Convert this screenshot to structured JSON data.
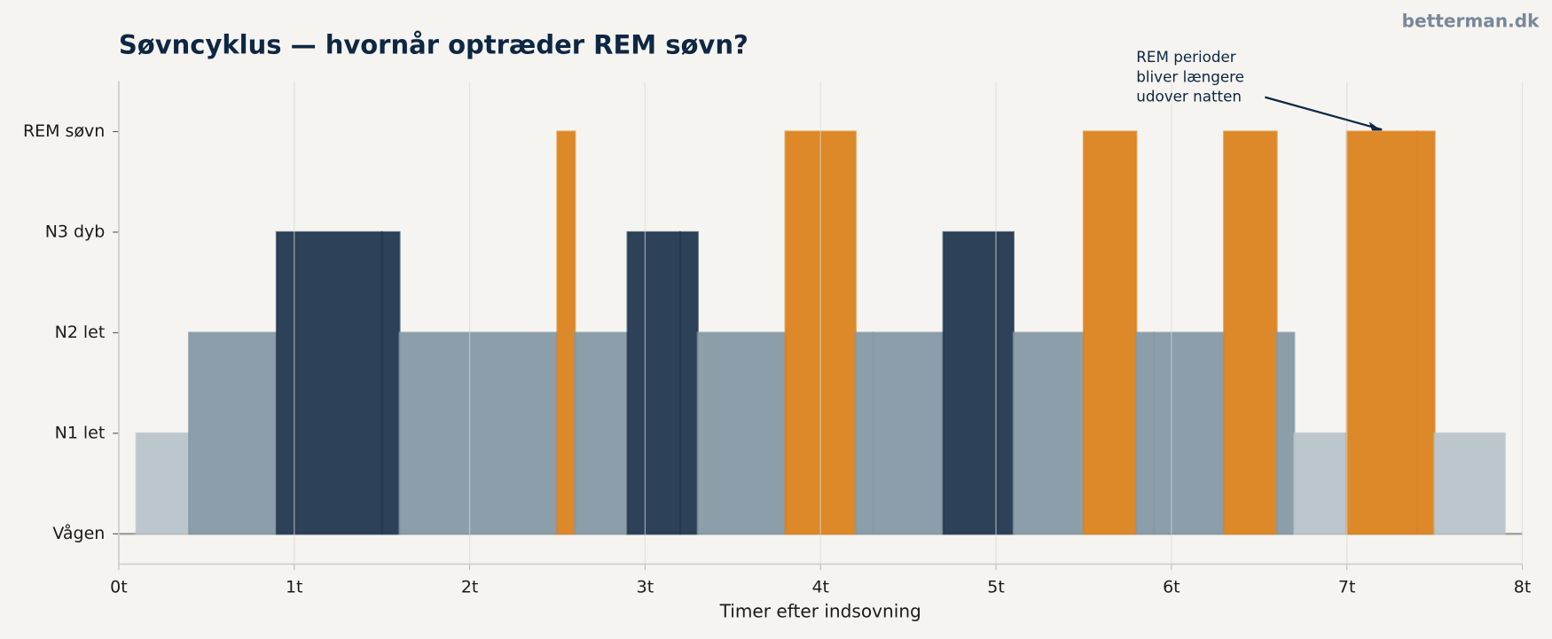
{
  "watermark": "betterman.dk",
  "chart_data": {
    "type": "hypnogram",
    "title": "Søvncyklus — hvornår optræder REM søvn?",
    "xlabel": "Timer efter indsovning",
    "xlim": [
      0,
      8
    ],
    "xticks": [
      {
        "value": 0,
        "label": "0t"
      },
      {
        "value": 1,
        "label": "1t"
      },
      {
        "value": 2,
        "label": "2t"
      },
      {
        "value": 3,
        "label": "3t"
      },
      {
        "value": 4,
        "label": "4t"
      },
      {
        "value": 5,
        "label": "5t"
      },
      {
        "value": 6,
        "label": "6t"
      },
      {
        "value": 7,
        "label": "7t"
      },
      {
        "value": 8,
        "label": "8t"
      }
    ],
    "ylim": [
      -0.3,
      4.5
    ],
    "yticks": [
      {
        "value": 0,
        "label": "Vågen"
      },
      {
        "value": 1,
        "label": "N1 let"
      },
      {
        "value": 2,
        "label": "N2 let"
      },
      {
        "value": 3,
        "label": "N3 dyb"
      },
      {
        "value": 4,
        "label": "REM søvn"
      }
    ],
    "stage_colors": [
      "#9a9a9a",
      "#b8c4ca",
      "#8599a4",
      "#22374f",
      "#db831f"
    ],
    "grid": true,
    "segments": {
      "start": [
        0.1,
        0.4,
        0.9,
        1.5,
        1.6,
        2.5,
        2.6,
        2.9,
        3.2,
        3.3,
        3.8,
        4.2,
        4.3,
        4.7,
        5.1,
        5.5,
        5.8,
        5.9,
        6.3,
        6.6,
        6.7,
        7.0,
        7.4,
        7.5
      ],
      "end": [
        0.4,
        0.9,
        1.5,
        1.6,
        2.5,
        2.6,
        2.9,
        3.2,
        3.3,
        3.8,
        4.2,
        4.3,
        4.7,
        5.1,
        5.5,
        5.8,
        5.9,
        6.3,
        6.6,
        6.7,
        7.0,
        7.4,
        7.5,
        7.9
      ],
      "stage": [
        1,
        2,
        3,
        3,
        2,
        4,
        2,
        3,
        3,
        2,
        4,
        2,
        2,
        3,
        2,
        4,
        2,
        2,
        4,
        2,
        1,
        4,
        4,
        1
      ]
    },
    "annotation": {
      "lines": [
        "REM perioder",
        "bliver længere",
        "udover natten"
      ],
      "xy": [
        7.2,
        4
      ]
    }
  }
}
